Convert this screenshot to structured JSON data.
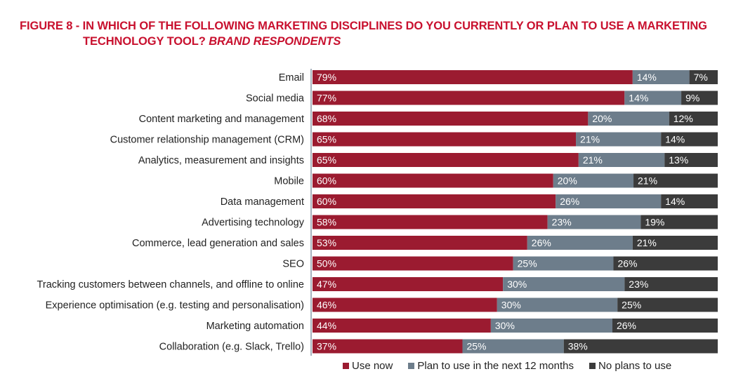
{
  "title": {
    "line1": "FIGURE 8 - IN WHICH OF THE FOLLOWING MARKETING DISCIPLINES DO YOU CURRENTLY OR PLAN TO USE A MARKETING",
    "line2_main": "TECHNOLOGY TOOL? ",
    "line2_sub": "BRAND RESPONDENTS"
  },
  "colors": {
    "use_now": "#9b1b30",
    "plan": "#6d7d8b",
    "no_plans": "#3b3b3b",
    "title": "#c8102e"
  },
  "chart_data": {
    "type": "bar",
    "orientation": "horizontal",
    "stacked": true,
    "categories": [
      "Email",
      "Social media",
      "Content marketing and management",
      "Customer relationship management (CRM)",
      "Analytics, measurement and insights",
      "Mobile",
      "Data management",
      "Advertising technology",
      "Commerce, lead generation and sales",
      "SEO",
      "Tracking customers between channels, and offline to online",
      "Experience optimisation (e.g. testing and personalisation)",
      "Marketing automation",
      "Collaboration (e.g. Slack, Trello)"
    ],
    "series": [
      {
        "name": "Use now",
        "values": [
          79,
          77,
          68,
          65,
          65,
          60,
          60,
          58,
          53,
          50,
          47,
          46,
          44,
          37
        ]
      },
      {
        "name": "Plan to use in the next 12 months",
        "values": [
          14,
          14,
          20,
          21,
          21,
          20,
          26,
          23,
          26,
          25,
          30,
          30,
          30,
          25
        ]
      },
      {
        "name": "No plans to use",
        "values": [
          7,
          9,
          12,
          14,
          13,
          21,
          14,
          19,
          21,
          26,
          23,
          25,
          26,
          38
        ]
      }
    ],
    "value_suffix": "%",
    "xlim": [
      0,
      100
    ],
    "legend_position": "bottom"
  }
}
